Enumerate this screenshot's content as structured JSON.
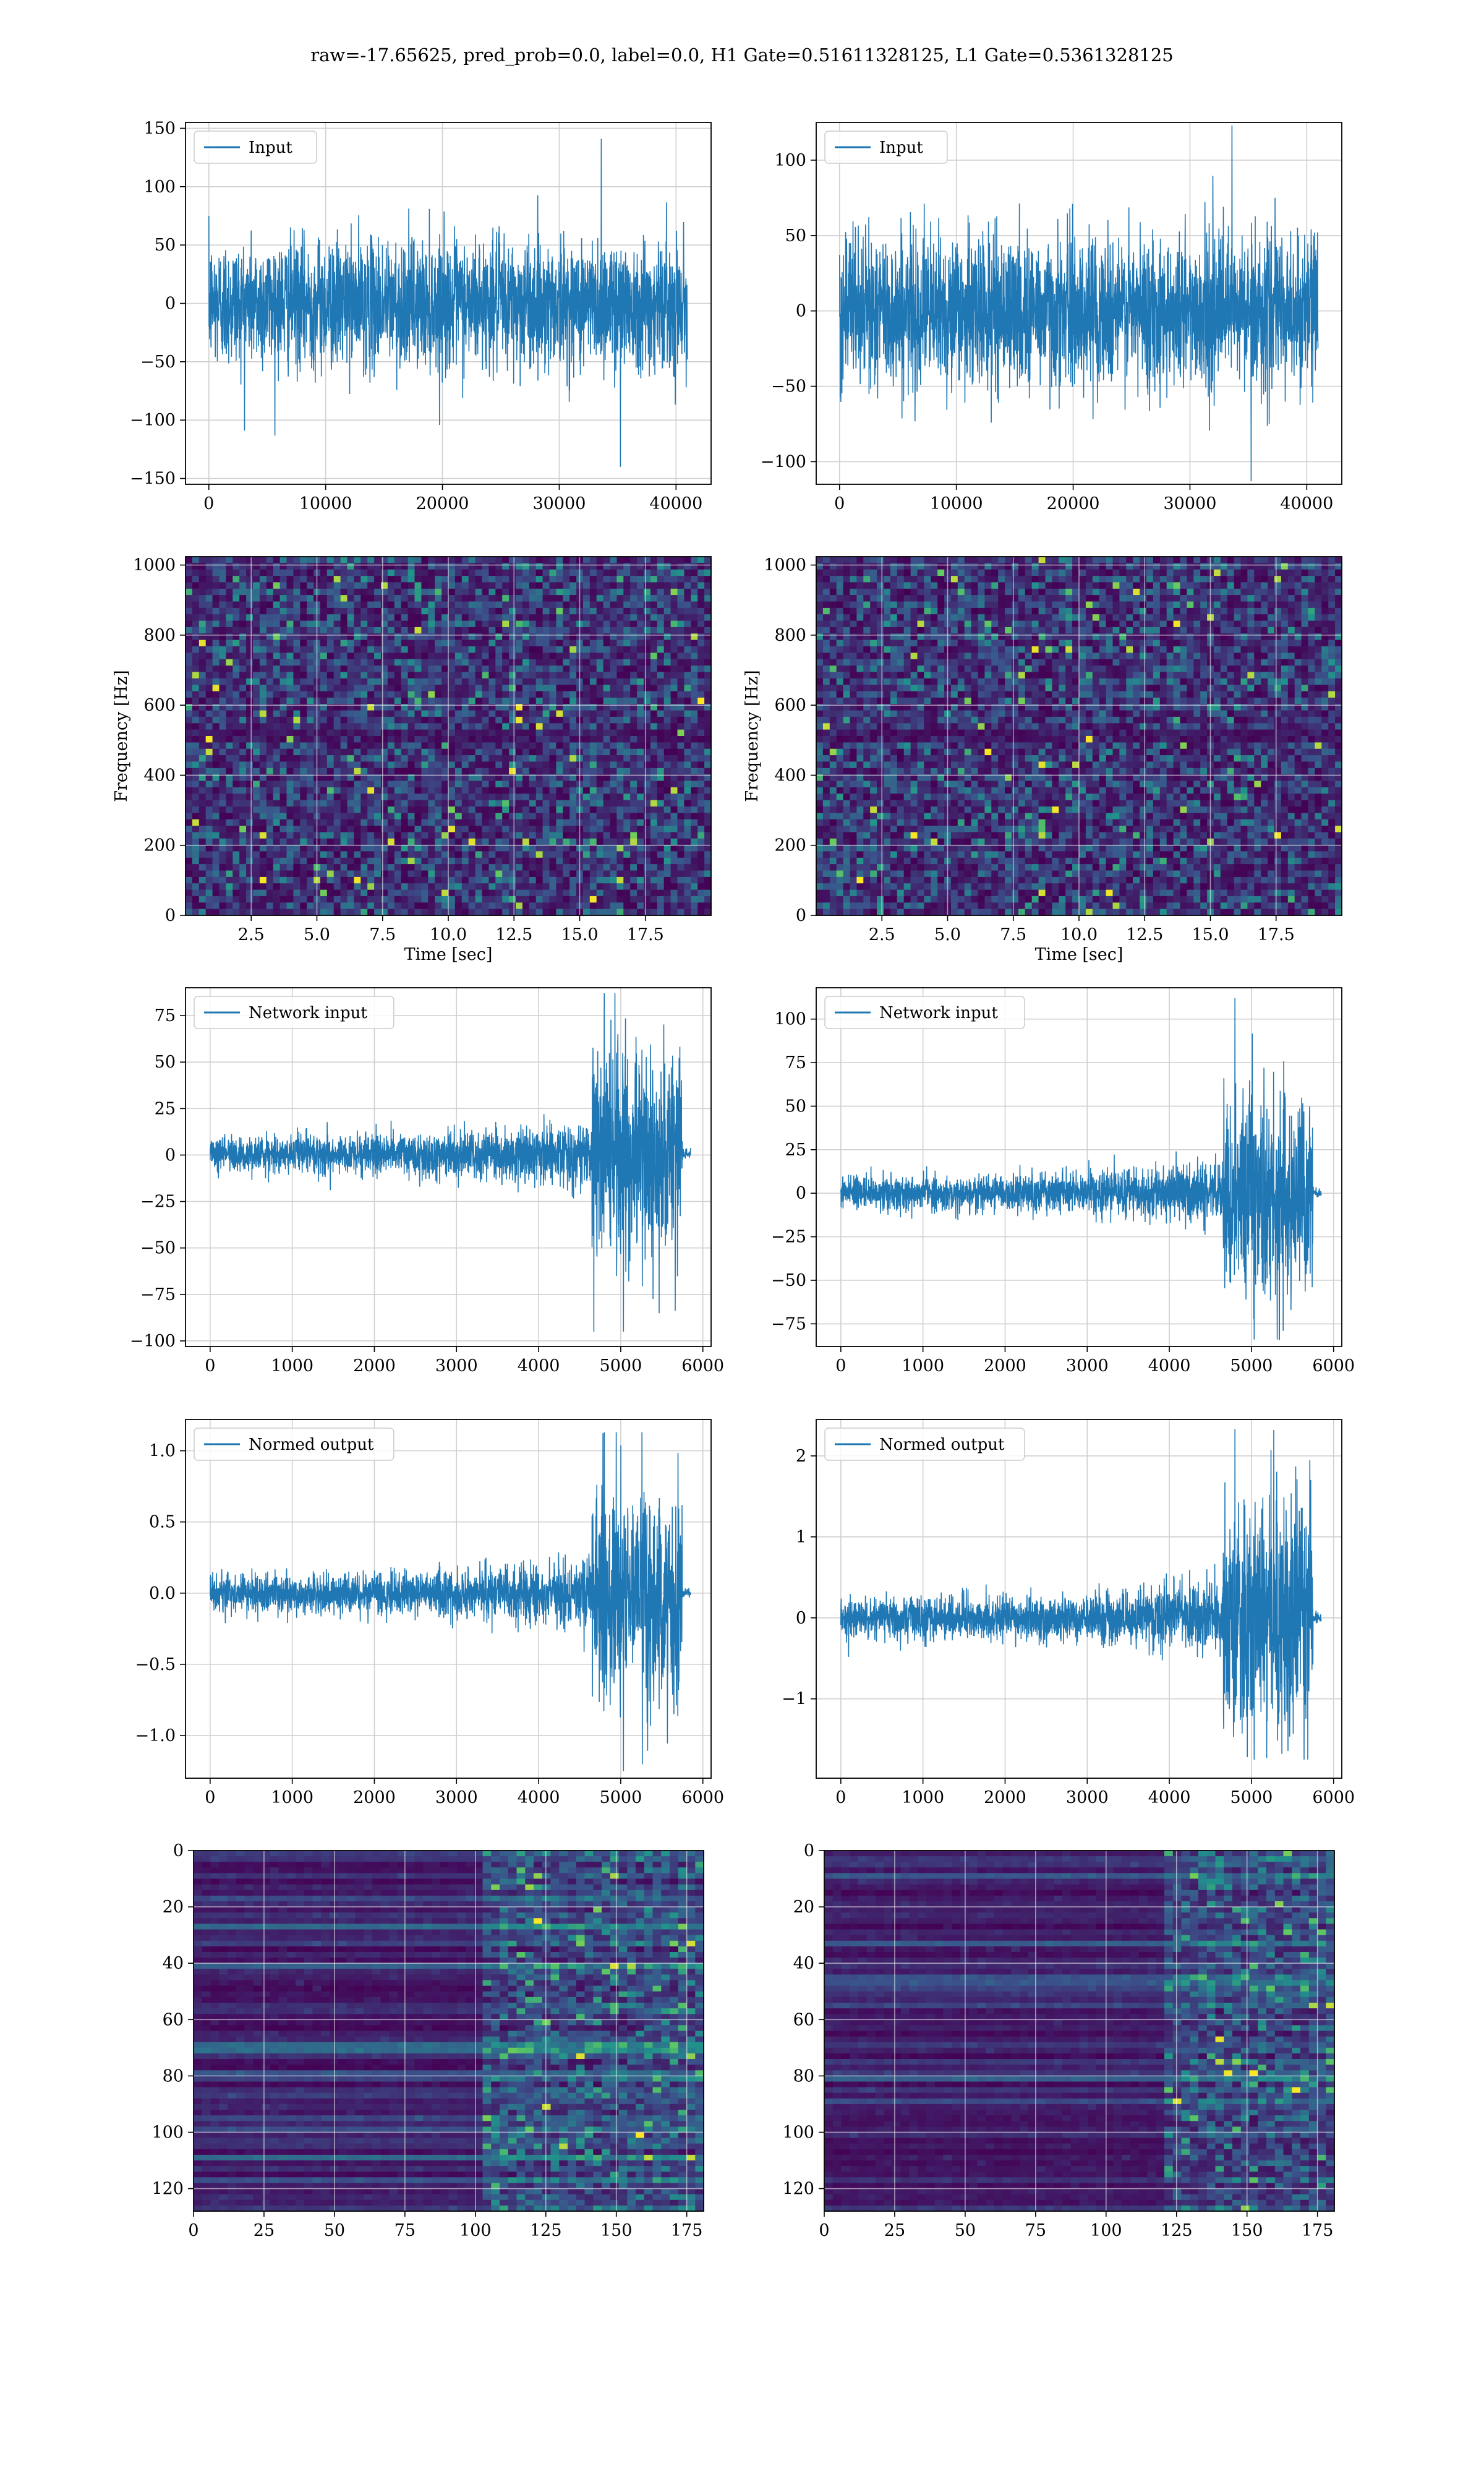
{
  "figure": {
    "title": "raw=-17.65625, pred_prob=0.0, label=0.0, H1 Gate=0.51611328125, L1 Gate=0.5361328125"
  },
  "colors": {
    "line": "#1f77b4",
    "grid": "#d0d0d0",
    "viridis_low": "#440154",
    "viridis_mid": "#21918c",
    "viridis_high": "#fde725"
  },
  "chart_data": [
    {
      "id": "h1-input",
      "type": "line",
      "legend": "Input",
      "legend_position": "upper-left",
      "xlim": [
        -2000,
        43000
      ],
      "ylim": [
        -155,
        155
      ],
      "xticks": [
        0,
        10000,
        20000,
        30000,
        40000
      ],
      "yticks": [
        -150,
        -100,
        -50,
        0,
        50,
        100,
        150
      ],
      "grid": true,
      "series": [
        {
          "name": "Input",
          "x_range": [
            0,
            40960
          ],
          "envelope": {
            "typical_abs": 60,
            "max": 141,
            "min": -140
          }
        }
      ]
    },
    {
      "id": "l1-input",
      "type": "line",
      "legend": "Input",
      "legend_position": "upper-left",
      "xlim": [
        -2000,
        43000
      ],
      "ylim": [
        -115,
        125
      ],
      "xticks": [
        0,
        10000,
        20000,
        30000,
        40000
      ],
      "yticks": [
        -100,
        -50,
        0,
        50,
        100
      ],
      "grid": true,
      "series": [
        {
          "name": "Input",
          "x_range": [
            0,
            40960
          ],
          "envelope": {
            "typical_abs": 55,
            "max": 123,
            "min": -113
          }
        }
      ]
    },
    {
      "id": "h1-spectrogram",
      "type": "heatmap",
      "xlabel": "Time [sec]",
      "ylabel": "Frequency [Hz]",
      "xlim": [
        0,
        20
      ],
      "ylim": [
        0,
        1024
      ],
      "xticks": [
        2.5,
        5.0,
        7.5,
        10.0,
        12.5,
        15.0,
        17.5
      ],
      "yticks": [
        0,
        200,
        400,
        600,
        800,
        1000
      ],
      "grid": true,
      "colormap": "viridis"
    },
    {
      "id": "l1-spectrogram",
      "type": "heatmap",
      "xlabel": "Time [sec]",
      "ylabel": "Frequency [Hz]",
      "xlim": [
        0,
        20
      ],
      "ylim": [
        0,
        1024
      ],
      "xticks": [
        2.5,
        5.0,
        7.5,
        10.0,
        12.5,
        15.0,
        17.5
      ],
      "yticks": [
        0,
        200,
        400,
        600,
        800,
        1000
      ],
      "grid": true,
      "colormap": "viridis"
    },
    {
      "id": "h1-network-input",
      "type": "line",
      "legend": "Network input",
      "legend_position": "upper-left",
      "xlim": [
        -300,
        6100
      ],
      "ylim": [
        -103,
        90
      ],
      "xticks": [
        0,
        1000,
        2000,
        3000,
        4000,
        5000,
        6000
      ],
      "yticks": [
        -100,
        -75,
        -50,
        -25,
        0,
        25,
        50,
        75
      ],
      "grid": true,
      "series": [
        {
          "name": "Network input",
          "x_range": [
            0,
            5850
          ],
          "envelope": {
            "base_abs": 12,
            "burst_start": 4650,
            "burst_end": 5750,
            "max": 87,
            "min": -95
          }
        }
      ]
    },
    {
      "id": "l1-network-input",
      "type": "line",
      "legend": "Network input",
      "legend_position": "upper-left",
      "xlim": [
        -300,
        6100
      ],
      "ylim": [
        -88,
        118
      ],
      "xticks": [
        0,
        1000,
        2000,
        3000,
        4000,
        5000,
        6000
      ],
      "yticks": [
        -75,
        -50,
        -25,
        0,
        25,
        50,
        75,
        100
      ],
      "grid": true,
      "series": [
        {
          "name": "Network input",
          "x_range": [
            0,
            5850
          ],
          "envelope": {
            "base_abs": 12,
            "burst_start": 4650,
            "burst_end": 5750,
            "max": 112,
            "min": -84
          }
        }
      ]
    },
    {
      "id": "h1-normed-output",
      "type": "line",
      "legend": "Normed output",
      "legend_position": "upper-left",
      "xlim": [
        -300,
        6100
      ],
      "ylim": [
        -1.3,
        1.22
      ],
      "xticks": [
        0,
        1000,
        2000,
        3000,
        4000,
        5000,
        6000
      ],
      "yticks": [
        -1.0,
        -0.5,
        0.0,
        0.5,
        1.0
      ],
      "grid": true,
      "series": [
        {
          "name": "Normed output",
          "x_range": [
            0,
            5850
          ],
          "envelope": {
            "base_abs": 0.16,
            "burst_start": 4650,
            "burst_end": 5750,
            "max": 1.13,
            "min": -1.25
          }
        }
      ]
    },
    {
      "id": "l1-normed-output",
      "type": "line",
      "legend": "Normed output",
      "legend_position": "upper-left",
      "xlim": [
        -300,
        6100
      ],
      "ylim": [
        -1.98,
        2.45
      ],
      "xticks": [
        0,
        1000,
        2000,
        3000,
        4000,
        5000,
        6000
      ],
      "yticks": [
        -1,
        0,
        1,
        2
      ],
      "grid": true,
      "series": [
        {
          "name": "Normed output",
          "x_range": [
            0,
            5850
          ],
          "envelope": {
            "base_abs": 0.3,
            "burst_start": 4650,
            "burst_end": 5750,
            "max": 2.33,
            "min": -1.75
          }
        }
      ]
    },
    {
      "id": "h1-feature-map",
      "type": "heatmap",
      "xlim": [
        0,
        181
      ],
      "ylim": [
        128,
        0
      ],
      "xticks": [
        0,
        25,
        50,
        75,
        100,
        125,
        150,
        175
      ],
      "yticks": [
        0,
        20,
        40,
        60,
        80,
        100,
        120
      ],
      "grid": true,
      "colormap": "viridis",
      "activity_onset_col": 100
    },
    {
      "id": "l1-feature-map",
      "type": "heatmap",
      "xlim": [
        0,
        181
      ],
      "ylim": [
        128,
        0
      ],
      "xticks": [
        0,
        25,
        50,
        75,
        100,
        125,
        150,
        175
      ],
      "yticks": [
        0,
        20,
        40,
        60,
        80,
        100,
        120
      ],
      "grid": true,
      "colormap": "viridis",
      "activity_onset_col": 120
    }
  ]
}
